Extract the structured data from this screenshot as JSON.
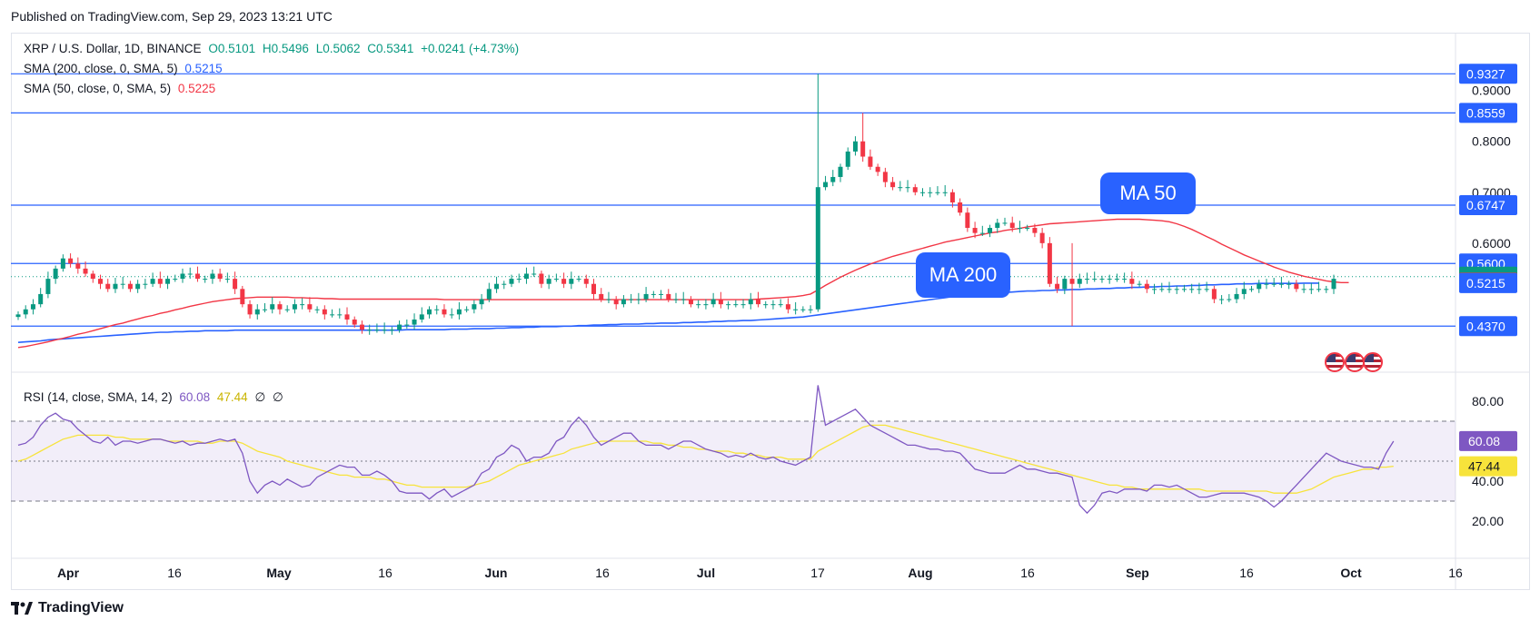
{
  "header": {
    "published": "Published on TradingView.com, Sep 29, 2023 13:21 UTC"
  },
  "legend": {
    "symbol": "XRP / U.S. Dollar, 1D, BINANCE",
    "open": "O0.5101",
    "high": "H0.5496",
    "low": "L0.5062",
    "close": "C0.5341",
    "change": "+0.0241 (+4.73%)",
    "sma200_label": "SMA (200, close, 0, SMA, 5)",
    "sma200_value": "0.5215",
    "sma50_label": "SMA (50, close, 0, SMA, 5)",
    "sma50_value": "0.5225",
    "rsi_label": "RSI (14, close, SMA, 14, 2)",
    "rsi_value": "60.08",
    "rsi_sma_value": "47.44",
    "rsi_na1": "∅",
    "rsi_na2": "∅"
  },
  "annotations": {
    "ma50": "MA 50",
    "ma200": "MA 200"
  },
  "footer": {
    "brand": "TradingView",
    "logo": "tradingview-logo-icon"
  },
  "colors": {
    "up": "#089981",
    "down": "#f23645",
    "sma200": "#2962ff",
    "sma50": "#f23645",
    "rsi": "#7e57c2",
    "rsi_sma": "#f7e33b",
    "hline": "#2962ff"
  },
  "chart_data": {
    "type": "candlestick",
    "price_axis": {
      "ticks": [
        "0.9000",
        "0.8000",
        "0.7000",
        "0.6000"
      ],
      "ylim": [
        0.4,
        0.96
      ]
    },
    "time_axis": {
      "labels": [
        "Apr",
        "16",
        "May",
        "16",
        "Jun",
        "16",
        "Jul",
        "17",
        "Aug",
        "16",
        "Sep",
        "16",
        "Oct",
        "16"
      ]
    },
    "horizontal_levels": [
      "0.9327",
      "0.8559",
      "0.6747",
      "0.5600",
      "0.4370"
    ],
    "price_badges": [
      {
        "label": "0.9327",
        "value": 0.9327,
        "color": "#2962ff"
      },
      {
        "label": "0.8559",
        "value": 0.8559,
        "color": "#2962ff"
      },
      {
        "label": "0.6747",
        "value": 0.6747,
        "color": "#2962ff"
      },
      {
        "label": "0.5600",
        "value": 0.56,
        "color": "#2962ff"
      },
      {
        "label": "0.5341",
        "value": 0.5341,
        "color": "#089981"
      },
      {
        "label": "0.5225",
        "value": 0.5225,
        "color": "#f23645"
      },
      {
        "label": "0.5215",
        "value": 0.5215,
        "color": "#2962ff"
      },
      {
        "label": "0.4370",
        "value": 0.437,
        "color": "#2962ff"
      }
    ],
    "close_series": [
      0.46,
      0.47,
      0.48,
      0.5,
      0.53,
      0.55,
      0.57,
      0.56,
      0.55,
      0.54,
      0.53,
      0.52,
      0.51,
      0.52,
      0.52,
      0.51,
      0.52,
      0.52,
      0.53,
      0.52,
      0.53,
      0.53,
      0.54,
      0.54,
      0.53,
      0.53,
      0.54,
      0.53,
      0.53,
      0.51,
      0.48,
      0.46,
      0.47,
      0.47,
      0.48,
      0.47,
      0.47,
      0.48,
      0.48,
      0.47,
      0.47,
      0.46,
      0.46,
      0.46,
      0.45,
      0.44,
      0.43,
      0.43,
      0.43,
      0.43,
      0.43,
      0.44,
      0.44,
      0.45,
      0.46,
      0.47,
      0.47,
      0.46,
      0.46,
      0.47,
      0.47,
      0.48,
      0.49,
      0.51,
      0.52,
      0.52,
      0.53,
      0.53,
      0.54,
      0.54,
      0.52,
      0.53,
      0.53,
      0.52,
      0.53,
      0.53,
      0.52,
      0.5,
      0.49,
      0.49,
      0.48,
      0.49,
      0.49,
      0.49,
      0.5,
      0.5,
      0.5,
      0.49,
      0.49,
      0.49,
      0.48,
      0.48,
      0.48,
      0.49,
      0.48,
      0.48,
      0.48,
      0.48,
      0.49,
      0.48,
      0.48,
      0.48,
      0.48,
      0.47,
      0.47,
      0.47,
      0.47,
      0.71,
      0.72,
      0.73,
      0.75,
      0.78,
      0.8,
      0.77,
      0.75,
      0.74,
      0.72,
      0.71,
      0.71,
      0.71,
      0.7,
      0.7,
      0.7,
      0.7,
      0.7,
      0.68,
      0.66,
      0.63,
      0.62,
      0.62,
      0.63,
      0.64,
      0.64,
      0.63,
      0.63,
      0.63,
      0.62,
      0.6,
      0.52,
      0.51,
      0.53,
      0.52,
      0.53,
      0.53,
      0.53,
      0.53,
      0.53,
      0.53,
      0.53,
      0.52,
      0.52,
      0.51,
      0.51,
      0.51,
      0.51,
      0.51,
      0.51,
      0.51,
      0.51,
      0.51,
      0.49,
      0.49,
      0.49,
      0.5,
      0.51,
      0.51,
      0.52,
      0.52,
      0.52,
      0.52,
      0.52,
      0.51,
      0.51,
      0.51,
      0.51,
      0.51,
      0.53
    ],
    "sma200_series": [
      0.405,
      0.406,
      0.407,
      0.408,
      0.41,
      0.411,
      0.412,
      0.413,
      0.414,
      0.415,
      0.416,
      0.417,
      0.418,
      0.419,
      0.42,
      0.421,
      0.422,
      0.423,
      0.424,
      0.425,
      0.425,
      0.426,
      0.426,
      0.427,
      0.427,
      0.428,
      0.428,
      0.428,
      0.428,
      0.429,
      0.429,
      0.429,
      0.429,
      0.429,
      0.429,
      0.429,
      0.429,
      0.429,
      0.429,
      0.429,
      0.429,
      0.429,
      0.429,
      0.429,
      0.429,
      0.429,
      0.429,
      0.429,
      0.429,
      0.429,
      0.429,
      0.429,
      0.43,
      0.43,
      0.43,
      0.43,
      0.43,
      0.43,
      0.431,
      0.431,
      0.431,
      0.432,
      0.432,
      0.432,
      0.433,
      0.433,
      0.434,
      0.434,
      0.435,
      0.435,
      0.436,
      0.436,
      0.436,
      0.437,
      0.437,
      0.438,
      0.438,
      0.439,
      0.439,
      0.44,
      0.44,
      0.441,
      0.441,
      0.441,
      0.442,
      0.442,
      0.443,
      0.443,
      0.443,
      0.444,
      0.444,
      0.445,
      0.445,
      0.446,
      0.446,
      0.447,
      0.447,
      0.448,
      0.448,
      0.449,
      0.45,
      0.451,
      0.452,
      0.453,
      0.454,
      0.455,
      0.457,
      0.459,
      0.461,
      0.463,
      0.465,
      0.467,
      0.469,
      0.471,
      0.473,
      0.475,
      0.477,
      0.479,
      0.481,
      0.483,
      0.485,
      0.487,
      0.489,
      0.491,
      0.493,
      0.495,
      0.497,
      0.498,
      0.499,
      0.5,
      0.501,
      0.502,
      0.503,
      0.504,
      0.505,
      0.506,
      0.506,
      0.507,
      0.507,
      0.508,
      0.508,
      0.509,
      0.509,
      0.51,
      0.51,
      0.511,
      0.511,
      0.512,
      0.512,
      0.513,
      0.513,
      0.514,
      0.514,
      0.515,
      0.515,
      0.516,
      0.516,
      0.517,
      0.517,
      0.518,
      0.518,
      0.519,
      0.519,
      0.52,
      0.52,
      0.52,
      0.521,
      0.521,
      0.521,
      0.521,
      0.521,
      0.521,
      0.5215,
      0.5215,
      0.5215
    ],
    "sma50_series": [
      0.395,
      0.397,
      0.4,
      0.403,
      0.406,
      0.41,
      0.413,
      0.417,
      0.421,
      0.424,
      0.428,
      0.432,
      0.436,
      0.44,
      0.443,
      0.447,
      0.451,
      0.455,
      0.458,
      0.462,
      0.465,
      0.469,
      0.472,
      0.476,
      0.479,
      0.482,
      0.485,
      0.487,
      0.489,
      0.491,
      0.492,
      0.493,
      0.494,
      0.494,
      0.494,
      0.494,
      0.494,
      0.493,
      0.493,
      0.492,
      0.492,
      0.491,
      0.491,
      0.49,
      0.49,
      0.49,
      0.49,
      0.49,
      0.49,
      0.49,
      0.49,
      0.49,
      0.49,
      0.49,
      0.49,
      0.49,
      0.49,
      0.489,
      0.489,
      0.489,
      0.489,
      0.489,
      0.489,
      0.489,
      0.489,
      0.489,
      0.489,
      0.489,
      0.489,
      0.489,
      0.489,
      0.489,
      0.489,
      0.489,
      0.489,
      0.489,
      0.489,
      0.489,
      0.489,
      0.489,
      0.489,
      0.489,
      0.489,
      0.489,
      0.489,
      0.489,
      0.489,
      0.489,
      0.489,
      0.489,
      0.489,
      0.489,
      0.489,
      0.489,
      0.489,
      0.489,
      0.489,
      0.489,
      0.489,
      0.49,
      0.491,
      0.492,
      0.493,
      0.494,
      0.495,
      0.497,
      0.5,
      0.508,
      0.517,
      0.525,
      0.533,
      0.54,
      0.547,
      0.553,
      0.559,
      0.564,
      0.569,
      0.574,
      0.578,
      0.582,
      0.586,
      0.59,
      0.594,
      0.598,
      0.602,
      0.605,
      0.608,
      0.611,
      0.614,
      0.617,
      0.62,
      0.622,
      0.625,
      0.627,
      0.629,
      0.632,
      0.634,
      0.636,
      0.638,
      0.639,
      0.64,
      0.641,
      0.642,
      0.643,
      0.644,
      0.645,
      0.646,
      0.647,
      0.647,
      0.647,
      0.647,
      0.646,
      0.645,
      0.644,
      0.642,
      0.638,
      0.633,
      0.627,
      0.62,
      0.613,
      0.606,
      0.598,
      0.591,
      0.584,
      0.577,
      0.571,
      0.565,
      0.559,
      0.553,
      0.548,
      0.543,
      0.539,
      0.535,
      0.532,
      0.529,
      0.526,
      0.524,
      0.5225,
      0.5225
    ],
    "rsi": {
      "ticks": [
        "80.00",
        "40.00",
        "20.00"
      ],
      "ylim": [
        15,
        90
      ],
      "upper_band": 70,
      "lower_band": 30,
      "mid_band": 50,
      "series": [
        58,
        59,
        62,
        68,
        72,
        74,
        71,
        70,
        66,
        63,
        60,
        59,
        62,
        58,
        60,
        60,
        59,
        60,
        61,
        61,
        60,
        59,
        60,
        58,
        59,
        59,
        60,
        61,
        60,
        61,
        54,
        40,
        34,
        38,
        40,
        38,
        41,
        39,
        37,
        38,
        42,
        44,
        46,
        48,
        47,
        47,
        43,
        43,
        45,
        43,
        40,
        35,
        34,
        34,
        34,
        31,
        34,
        36,
        32,
        34,
        36,
        38,
        44,
        46,
        52,
        54,
        58,
        56,
        50,
        52,
        52,
        54,
        60,
        62,
        68,
        72,
        68,
        62,
        58,
        60,
        62,
        64,
        64,
        60,
        58,
        58,
        58,
        56,
        58,
        60,
        60,
        58,
        56,
        55,
        54,
        52,
        53,
        52,
        54,
        52,
        51,
        52,
        50,
        49,
        48,
        50,
        52,
        88,
        68,
        70,
        72,
        74,
        76,
        72,
        68,
        66,
        64,
        62,
        60,
        58,
        58,
        57,
        56,
        56,
        55,
        55,
        54,
        50,
        46,
        45,
        44,
        44,
        44,
        46,
        48,
        46,
        46,
        45,
        44,
        44,
        43,
        42,
        28,
        24,
        28,
        34,
        35,
        34,
        36,
        36,
        36,
        35,
        38,
        38,
        37,
        38,
        36,
        34,
        32,
        32,
        33,
        34,
        34,
        34,
        34,
        33,
        32,
        30,
        27,
        30,
        34,
        38,
        42,
        46,
        50,
        54,
        52,
        50,
        49,
        48,
        47,
        47,
        46,
        54,
        60
      ],
      "sma_series": [
        50,
        51,
        53,
        55,
        57,
        59,
        61,
        62,
        63,
        63,
        63,
        63,
        63,
        62,
        62,
        61,
        61,
        61,
        61,
        61,
        60,
        60,
        60,
        60,
        60,
        59,
        59,
        60,
        60,
        60,
        59,
        57,
        55,
        54,
        53,
        52,
        50,
        49,
        48,
        47,
        46,
        45,
        44,
        43,
        43,
        42,
        42,
        42,
        41,
        41,
        40,
        39,
        38,
        38,
        37,
        37,
        37,
        37,
        37,
        37,
        37,
        38,
        39,
        40,
        42,
        44,
        46,
        48,
        49,
        50,
        51,
        52,
        53,
        54,
        56,
        57,
        58,
        59,
        60,
        60,
        60,
        60,
        60,
        60,
        60,
        59,
        59,
        58,
        58,
        57,
        57,
        56,
        56,
        55,
        55,
        55,
        54,
        54,
        53,
        53,
        52,
        52,
        52,
        51,
        51,
        51,
        51,
        55,
        57,
        59,
        61,
        63,
        65,
        67,
        68,
        68,
        68,
        67,
        66,
        65,
        64,
        63,
        62,
        61,
        60,
        59,
        58,
        57,
        56,
        55,
        54,
        53,
        52,
        51,
        50,
        49,
        48,
        47,
        46,
        45,
        44,
        43,
        42,
        41,
        40,
        39,
        38,
        38,
        37,
        37,
        36,
        36,
        36,
        36,
        36,
        36,
        36,
        36,
        36,
        35,
        35,
        35,
        35,
        35,
        35,
        35,
        35,
        35,
        34,
        34,
        34,
        34,
        35,
        36,
        38,
        40,
        42,
        43,
        44,
        45,
        46,
        46,
        47,
        47,
        47.44
      ]
    }
  }
}
